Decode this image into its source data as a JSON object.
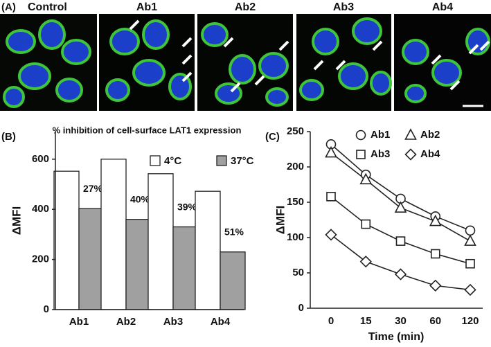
{
  "panel_a": {
    "label": "(A)",
    "titles": [
      "Control",
      "Ab1",
      "Ab2",
      "Ab3",
      "Ab4"
    ]
  },
  "chart_data": [
    {
      "type": "bar",
      "panel_label": "(B)",
      "title": "% inhibition of cell-surface LAT1 expression",
      "y_label": "ΔMFI",
      "categories": [
        "Ab1",
        "Ab2",
        "Ab3",
        "Ab4"
      ],
      "series": [
        {
          "name": "4°C",
          "color": "#ffffff",
          "values": [
            552,
            600,
            542,
            472
          ]
        },
        {
          "name": "37°C",
          "color": "#a0a0a0",
          "values": [
            403,
            360,
            330,
            230
          ]
        }
      ],
      "annotations": [
        "27%",
        "40%",
        "39%",
        "51%"
      ],
      "ylim": [
        0,
        710
      ],
      "yticks": [
        0,
        200,
        400,
        600
      ]
    },
    {
      "type": "line",
      "panel_label": "(C)",
      "x_label": "Time (min)",
      "y_label": "ΔMFI",
      "categories": [
        "0",
        "15",
        "30",
        "60",
        "120"
      ],
      "series": [
        {
          "name": "Ab1",
          "marker": "circle",
          "values": [
            232,
            189,
            155,
            130,
            110
          ]
        },
        {
          "name": "Ab2",
          "marker": "triangle",
          "values": [
            220,
            182,
            142,
            123,
            95
          ]
        },
        {
          "name": "Ab3",
          "marker": "square",
          "values": [
            158,
            119,
            95,
            77,
            63
          ]
        },
        {
          "name": "Ab4",
          "marker": "diamond",
          "values": [
            104,
            66,
            48,
            32,
            26
          ]
        }
      ],
      "ylim": [
        0,
        250
      ],
      "yticks": [
        0,
        50,
        100,
        150,
        200,
        250
      ]
    }
  ]
}
